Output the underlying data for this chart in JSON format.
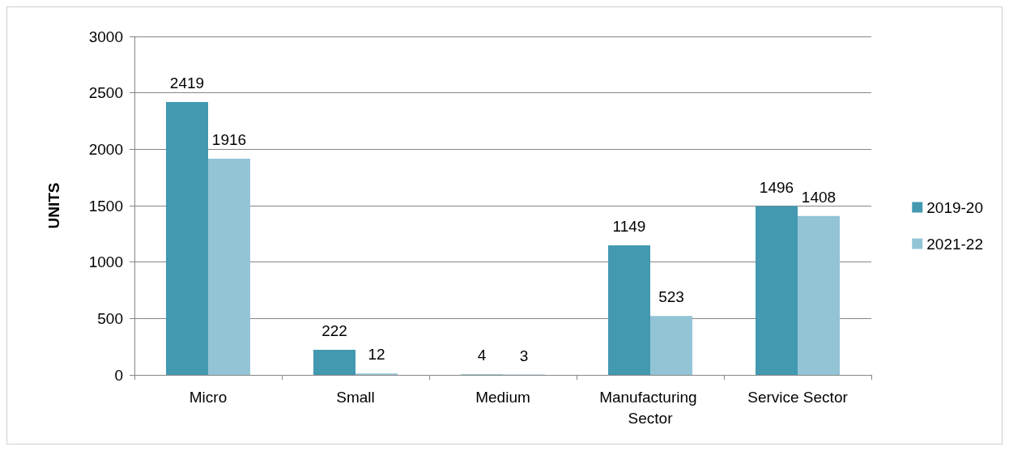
{
  "chart_data": {
    "type": "bar",
    "ylabel": "UNITS",
    "categories": [
      "Micro",
      "Small",
      "Medium",
      "Manufacturing Sector",
      "Service Sector"
    ],
    "series": [
      {
        "name": "2019-20",
        "color": "#4299b0",
        "values": [
          2419,
          222,
          4,
          1149,
          1496
        ]
      },
      {
        "name": "2021-22",
        "color": "#93c4d6",
        "values": [
          1916,
          12,
          3,
          523,
          1408
        ]
      }
    ],
    "ylim": [
      0,
      3000
    ],
    "yticks": [
      0,
      500,
      1000,
      1500,
      2000,
      2500,
      3000
    ],
    "grid": "y",
    "legend": "right",
    "data_labels": true
  }
}
